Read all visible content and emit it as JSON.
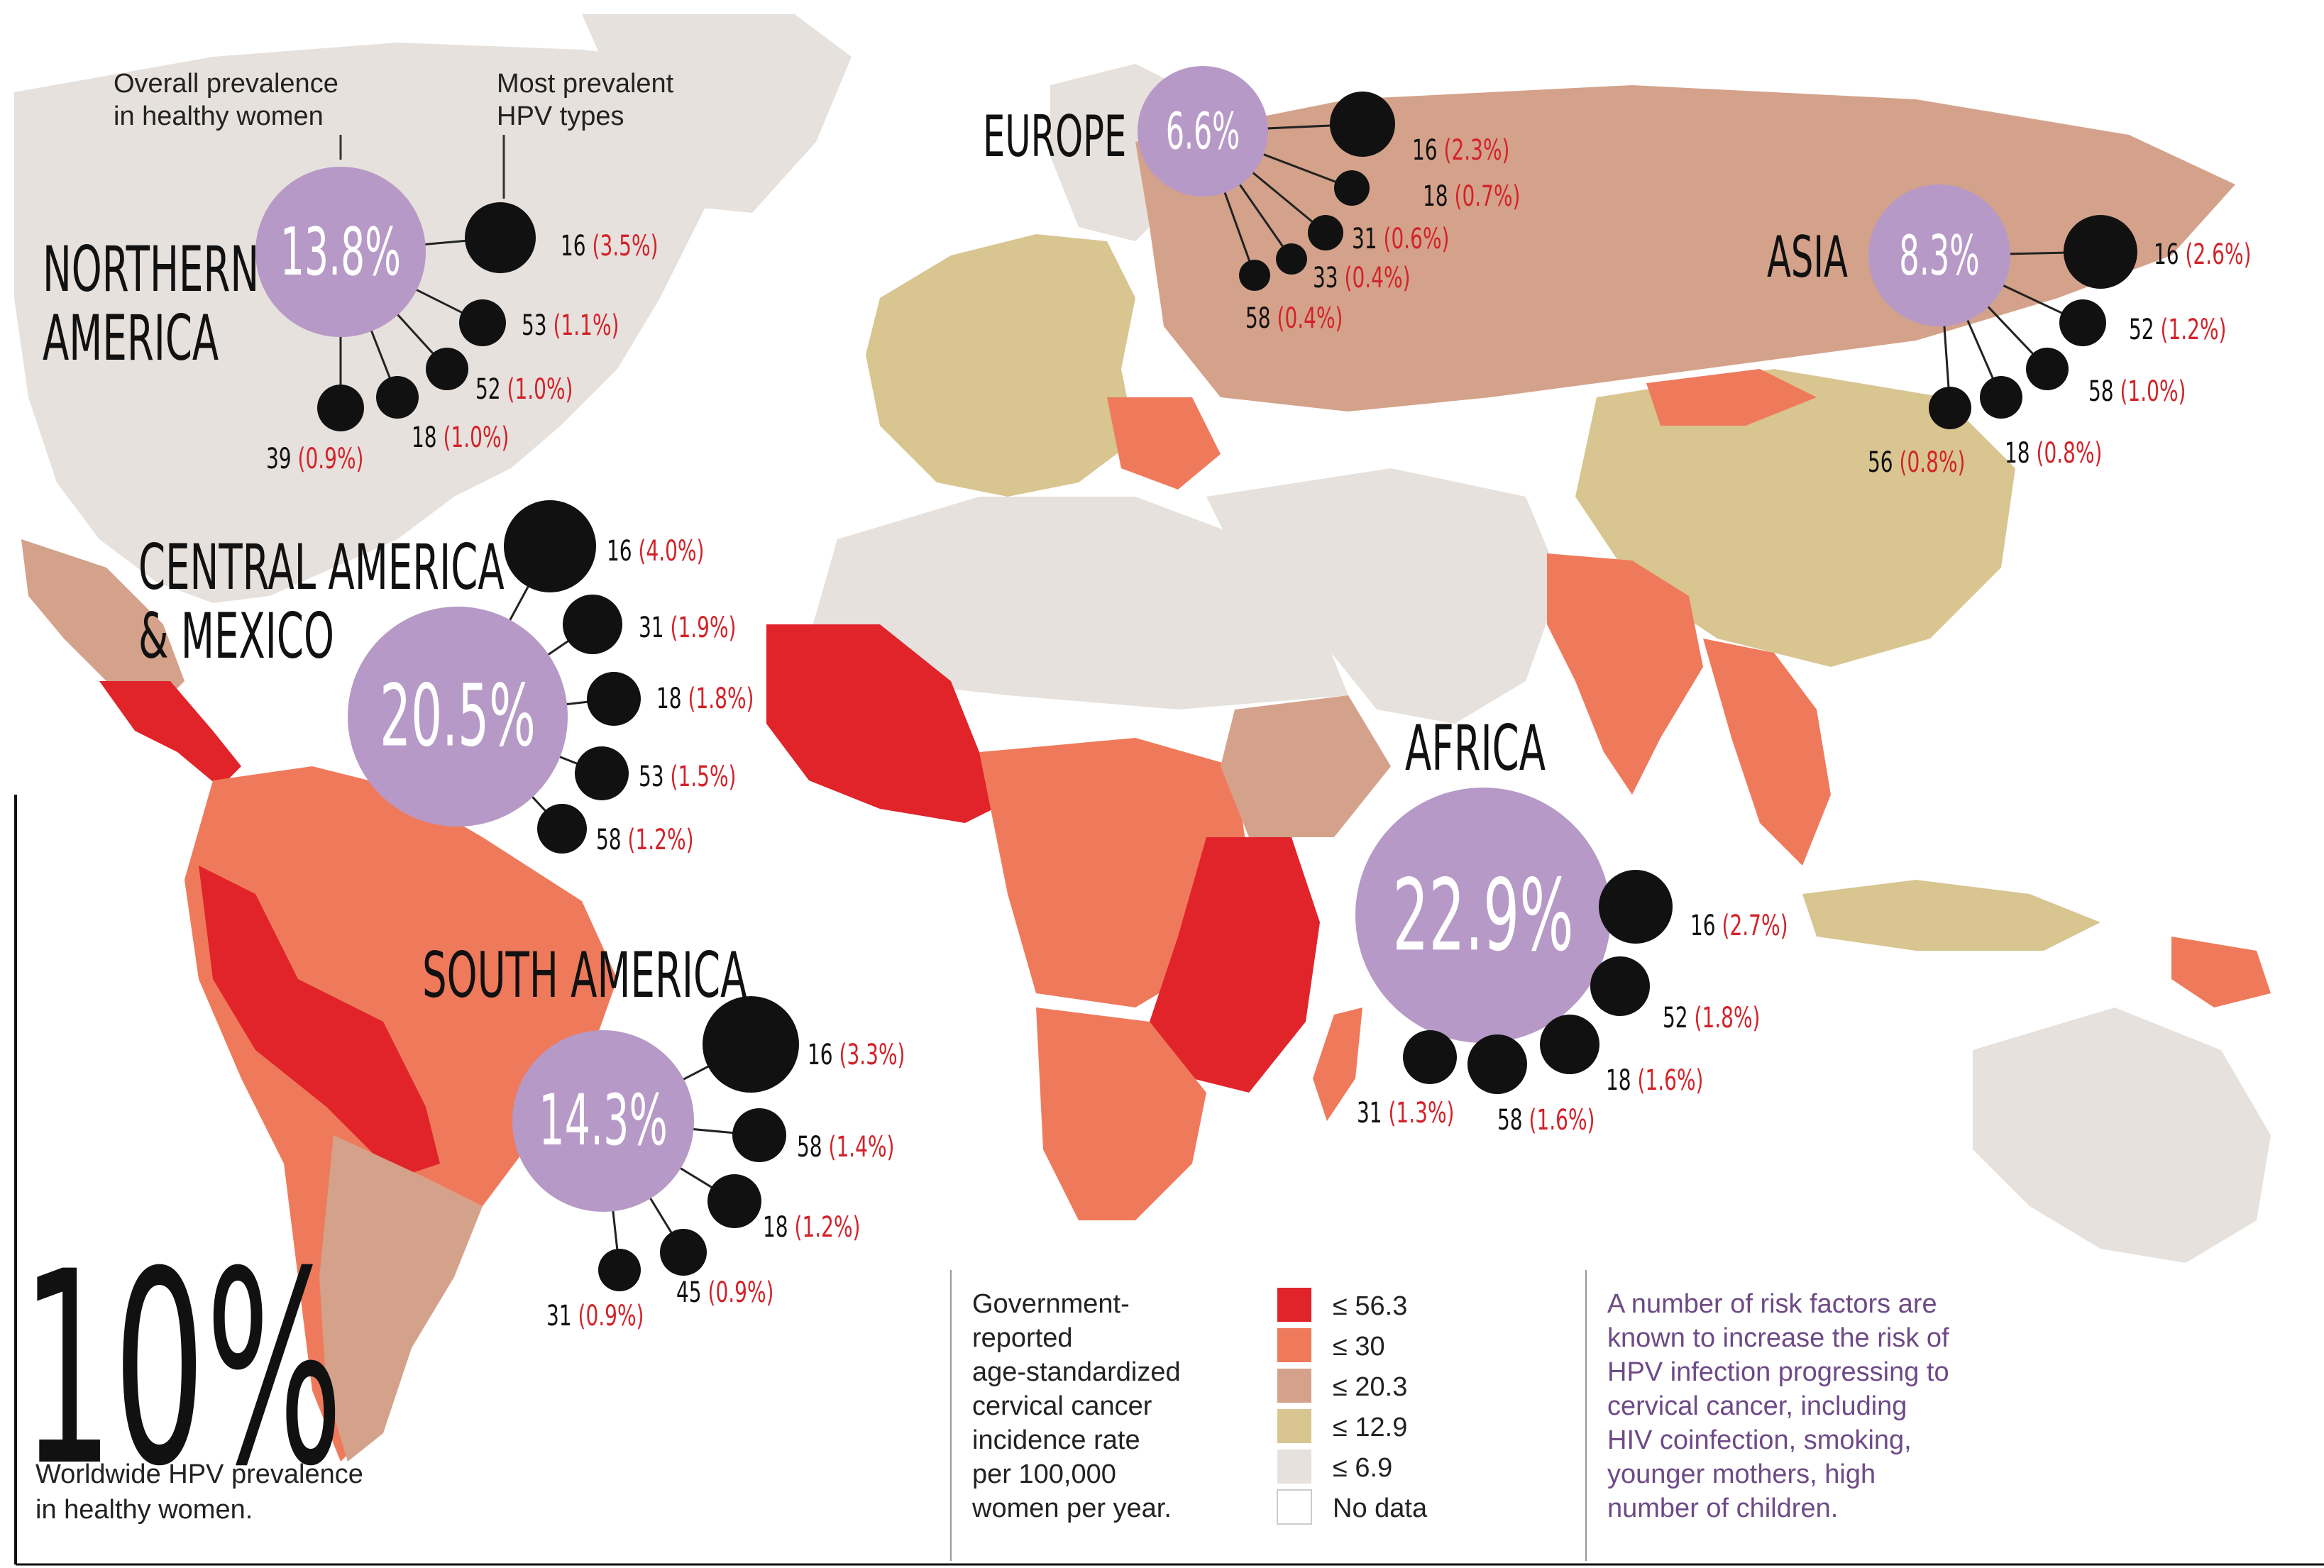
{
  "colors": {
    "ocean": "#ffffff",
    "rate_56_3": "#e0242a",
    "rate_30": "#ef7a5b",
    "rate_20_3": "#d4a28a",
    "rate_12_9": "#d8c590",
    "rate_6_9": "#e6e1dc",
    "no_data": "#ffffff",
    "prevalence_circle": "#b699c6",
    "type_dot": "#111111",
    "percent_text": "#d2232a",
    "note_text": "#6e4a86"
  },
  "annotations": {
    "overall_prevalence": "Overall prevalence\nin healthy women",
    "most_prevalent_types": "Most prevalent\nHPV types"
  },
  "regions": [
    {
      "id": "northern-america",
      "name": "NORTHERN\nAMERICA",
      "prevalence": "13.8%",
      "prevalence_value": 13.8,
      "types": [
        {
          "type": "16",
          "pct": "(3.5%)"
        },
        {
          "type": "53",
          "pct": "(1.1%)"
        },
        {
          "type": "52",
          "pct": "(1.0%)"
        },
        {
          "type": "18",
          "pct": "(1.0%)"
        },
        {
          "type": "39",
          "pct": "(0.9%)"
        }
      ]
    },
    {
      "id": "europe",
      "name": "EUROPE",
      "prevalence": "6.6%",
      "prevalence_value": 6.6,
      "types": [
        {
          "type": "16",
          "pct": "(2.3%)"
        },
        {
          "type": "18",
          "pct": "(0.7%)"
        },
        {
          "type": "31",
          "pct": "(0.6%)"
        },
        {
          "type": "33",
          "pct": "(0.4%)"
        },
        {
          "type": "58",
          "pct": "(0.4%)"
        }
      ]
    },
    {
      "id": "asia",
      "name": "ASIA",
      "prevalence": "8.3%",
      "prevalence_value": 8.3,
      "types": [
        {
          "type": "16",
          "pct": "(2.6%)"
        },
        {
          "type": "52",
          "pct": "(1.2%)"
        },
        {
          "type": "58",
          "pct": "(1.0%)"
        },
        {
          "type": "18",
          "pct": "(0.8%)"
        },
        {
          "type": "56",
          "pct": "(0.8%)"
        }
      ]
    },
    {
      "id": "central-america-mexico",
      "name": "CENTRAL AMERICA\n& MEXICO",
      "prevalence": "20.5%",
      "prevalence_value": 20.5,
      "types": [
        {
          "type": "16",
          "pct": "(4.0%)"
        },
        {
          "type": "31",
          "pct": "(1.9%)"
        },
        {
          "type": "18",
          "pct": "(1.8%)"
        },
        {
          "type": "53",
          "pct": "(1.5%)"
        },
        {
          "type": "58",
          "pct": "(1.2%)"
        }
      ]
    },
    {
      "id": "africa",
      "name": "AFRICA",
      "prevalence": "22.9%",
      "prevalence_value": 22.9,
      "types": [
        {
          "type": "16",
          "pct": "(2.7%)"
        },
        {
          "type": "52",
          "pct": "(1.8%)"
        },
        {
          "type": "18",
          "pct": "(1.6%)"
        },
        {
          "type": "58",
          "pct": "(1.6%)"
        },
        {
          "type": "31",
          "pct": "(1.3%)"
        }
      ]
    },
    {
      "id": "south-america",
      "name": "SOUTH AMERICA",
      "prevalence": "14.3%",
      "prevalence_value": 14.3,
      "types": [
        {
          "type": "16",
          "pct": "(3.3%)"
        },
        {
          "type": "58",
          "pct": "(1.4%)"
        },
        {
          "type": "18",
          "pct": "(1.2%)"
        },
        {
          "type": "45",
          "pct": "(0.9%)"
        },
        {
          "type": "31",
          "pct": "(0.9%)"
        }
      ]
    }
  ],
  "worldwide": {
    "value": "10%",
    "label": "Worldwide HPV prevalence\nin healthy women."
  },
  "legend": {
    "title": "Government-\nreported\nage-standardized\ncervical cancer\nincidence rate\nper 100,000\nwomen per year.",
    "items": [
      {
        "label": "≤ 56.3",
        "color_key": "rate_56_3"
      },
      {
        "label": "≤ 30",
        "color_key": "rate_30"
      },
      {
        "label": "≤ 20.3",
        "color_key": "rate_20_3"
      },
      {
        "label": "≤ 12.9",
        "color_key": "rate_12_9"
      },
      {
        "label": "≤ 6.9",
        "color_key": "rate_6_9"
      },
      {
        "label": "No data",
        "color_key": "no_data"
      }
    ]
  },
  "note": "A number of risk factors are\nknown to increase the risk of\nHPV infection progressing to\ncervical cancer, including\nHIV coinfection, smoking,\nyounger mothers, high\nnumber of children."
}
